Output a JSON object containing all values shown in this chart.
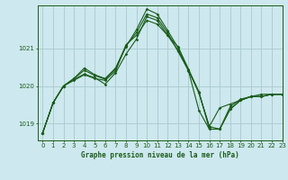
{
  "bg_color": "#cde8ee",
  "grid_color": "#aac8d0",
  "line_color": "#1a5c1a",
  "title": "Graphe pression niveau de la mer (hPa)",
  "ylim": [
    1018.55,
    1022.15
  ],
  "xlim": [
    -0.5,
    23
  ],
  "yticks": [
    1019,
    1020,
    1021
  ],
  "xticks": [
    0,
    1,
    2,
    3,
    4,
    5,
    6,
    7,
    8,
    9,
    10,
    11,
    12,
    13,
    14,
    15,
    16,
    17,
    18,
    19,
    20,
    21,
    22,
    23
  ],
  "series": [
    [
      1018.75,
      1019.55,
      1020.0,
      1020.15,
      1020.3,
      1020.2,
      1020.15,
      1020.4,
      1021.1,
      1021.35,
      1021.75,
      1021.65,
      1021.35,
      1021.05,
      1020.45,
      1019.85,
      1018.85,
      1018.85,
      1019.45,
      1019.65,
      1019.72,
      1019.72,
      1019.78,
      1019.78
    ],
    [
      1018.75,
      1019.55,
      1020.0,
      1020.18,
      1020.32,
      1020.22,
      1020.05,
      1020.35,
      1020.85,
      1021.25,
      1021.85,
      1021.75,
      1021.35,
      1020.95,
      1020.4,
      1019.35,
      1018.85,
      1018.85,
      1019.38,
      1019.62,
      1019.72,
      1019.72,
      1019.78,
      1019.78
    ],
    [
      1018.75,
      1019.55,
      1020.0,
      1020.2,
      1020.42,
      1020.28,
      1020.18,
      1020.45,
      1021.05,
      1021.5,
      1022.05,
      1021.92,
      1021.48,
      1021.02,
      1020.42,
      1019.82,
      1018.92,
      1018.85,
      1019.38,
      1019.62,
      1019.72,
      1019.72,
      1019.78,
      1019.78
    ],
    [
      1018.75,
      1019.55,
      1020.0,
      1020.2,
      1020.48,
      1020.3,
      1020.2,
      1020.48,
      1021.08,
      1021.42,
      1021.92,
      1021.82,
      1021.42,
      1020.92,
      1020.42,
      1019.82,
      1018.92,
      1019.42,
      1019.52,
      1019.62,
      1019.72,
      1019.78,
      1019.78,
      1019.78
    ]
  ]
}
